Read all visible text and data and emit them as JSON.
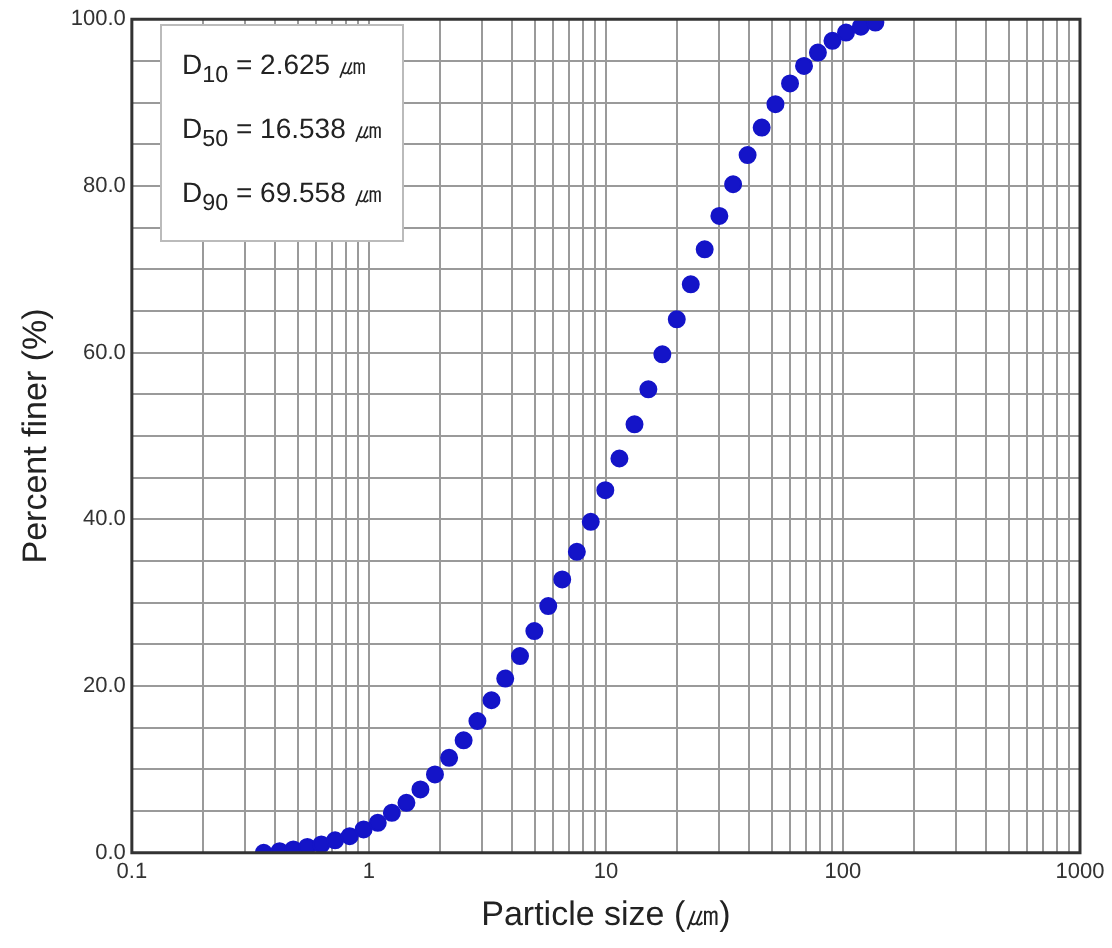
{
  "chart_data": {
    "type": "scatter",
    "xlabel": "Particle size (㎛)",
    "ylabel": "Percent finer (%)",
    "annotations": [
      "D$_{10}$ = 2.625 ㎛",
      "D$_{50}$ = 16.538 ㎛",
      "D$_{90}$ = 69.558 ㎛"
    ],
    "log": "x",
    "grid": true,
    "marker": "circle",
    "xlim": [
      0.1,
      1000
    ],
    "ylim": [
      0,
      100
    ],
    "xticks": [
      0.1,
      {
        "value": 0.2,
        "label": null
      },
      {
        "value": 0.3,
        "label": null
      },
      {
        "value": 0.4,
        "label": null
      },
      {
        "value": 0.5,
        "label": null
      },
      {
        "value": 0.6,
        "label": null
      },
      {
        "value": 0.7,
        "label": null
      },
      {
        "value": 0.8,
        "label": null
      },
      {
        "value": 0.9,
        "label": null
      },
      1,
      {
        "value": 2,
        "label": null
      },
      {
        "value": 3,
        "label": null
      },
      {
        "value": 4,
        "label": null
      },
      {
        "value": 5,
        "label": null
      },
      {
        "value": 6,
        "label": null
      },
      {
        "value": 7,
        "label": null
      },
      {
        "value": 8,
        "label": null
      },
      {
        "value": 9,
        "label": null
      },
      10,
      {
        "value": 20,
        "label": null
      },
      {
        "value": 30,
        "label": null
      },
      {
        "value": 40,
        "label": null
      },
      {
        "value": 50,
        "label": null
      },
      {
        "value": 60,
        "label": null
      },
      {
        "value": 70,
        "label": null
      },
      {
        "value": 80,
        "label": null
      },
      {
        "value": 90,
        "label": null
      },
      100,
      {
        "value": 200,
        "label": null
      },
      {
        "value": 300,
        "label": null
      },
      {
        "value": 400,
        "label": null
      },
      {
        "value": 500,
        "label": null
      },
      {
        "value": 600,
        "label": null
      },
      {
        "value": 700,
        "label": null
      },
      {
        "value": 800,
        "label": null
      },
      {
        "value": 900,
        "label": null
      },
      1000
    ],
    "yticks": [
      {
        "value": 0,
        "label": "0.0"
      },
      {
        "value": 5,
        "label": null
      },
      {
        "value": 10,
        "label": null
      },
      {
        "value": 15,
        "label": null
      },
      {
        "value": 20,
        "label": "20.0"
      },
      {
        "value": 25,
        "label": null
      },
      {
        "value": 30,
        "label": null
      },
      {
        "value": 35,
        "label": null
      },
      {
        "value": 40,
        "label": "40.0"
      },
      {
        "value": 45,
        "label": null
      },
      {
        "value": 50,
        "label": null
      },
      {
        "value": 55,
        "label": null
      },
      {
        "value": 60,
        "label": "60.0"
      },
      {
        "value": 65,
        "label": null
      },
      {
        "value": 70,
        "label": null
      },
      {
        "value": 75,
        "label": null
      },
      {
        "value": 80,
        "label": "80.0"
      },
      {
        "value": 85,
        "label": null
      },
      {
        "value": 90,
        "label": null
      },
      {
        "value": 95,
        "label": null
      },
      {
        "value": 100,
        "label": "100.0"
      }
    ],
    "series": [
      {
        "color": "#1414c8",
        "x": [
          0.36,
          0.42,
          0.48,
          0.55,
          0.63,
          0.72,
          0.83,
          0.95,
          1.09,
          1.25,
          1.44,
          1.65,
          1.9,
          2.18,
          2.51,
          2.87,
          3.29,
          3.76,
          4.34,
          4.99,
          5.71,
          6.54,
          7.54,
          8.63,
          9.94,
          11.4,
          13.2,
          15.1,
          17.3,
          19.9,
          22.8,
          26.1,
          30.1,
          34.4,
          39.6,
          45.4,
          51.9,
          59.8,
          68.5,
          78.4,
          90.3,
          103,
          119,
          137
        ],
        "values": [
          0,
          0.2,
          0.4,
          0.7,
          1.0,
          1.5,
          2.0,
          2.8,
          3.6,
          4.8,
          6.0,
          7.6,
          9.4,
          11.4,
          13.5,
          15.8,
          18.3,
          20.9,
          23.6,
          26.6,
          29.6,
          32.8,
          36.1,
          39.7,
          43.5,
          47.3,
          51.4,
          55.6,
          59.8,
          64.0,
          68.2,
          72.4,
          76.4,
          80.2,
          83.7,
          87.0,
          89.8,
          92.3,
          94.4,
          96.0,
          97.4,
          98.4,
          99.1,
          99.6
        ]
      }
    ]
  }
}
